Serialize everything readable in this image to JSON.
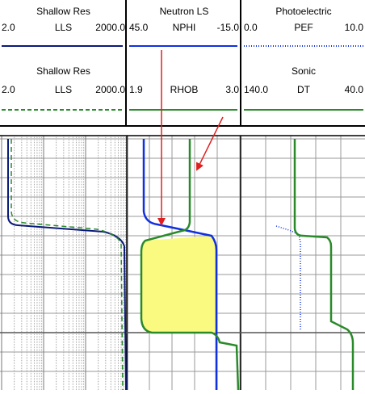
{
  "header": {
    "panels": [
      {
        "title": "Shallow Res",
        "left": "2.0",
        "mnemonic": "LLS",
        "right": "2000.0"
      },
      {
        "title": "Neutron LS",
        "left": "45.0",
        "mnemonic": "NPHI",
        "right": "-15.0"
      },
      {
        "title": "Photoelectric",
        "left": "0.0",
        "mnemonic": "PEF",
        "right": "10.0"
      },
      {
        "title": "Shallow Res",
        "left": "2.0",
        "mnemonic": "LLS",
        "right": "2000.0"
      },
      {
        "left": "1.9",
        "mnemonic": "RHOB",
        "right": "3.0"
      },
      {
        "title": "Sonic",
        "left": "140.0",
        "mnemonic": "DT",
        "right": "40.0"
      }
    ]
  }
}
